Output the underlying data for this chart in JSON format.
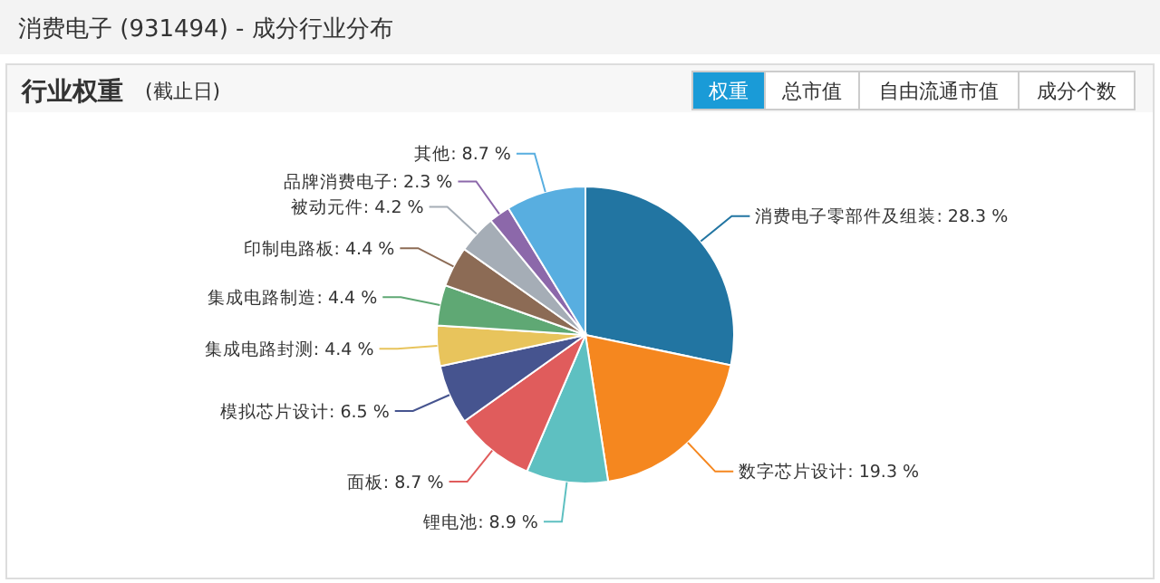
{
  "chart_data": {
    "type": "pie",
    "title": "消费电子 (931494) - 成分行业分布",
    "subtitle": "行业权重",
    "annotations": [
      "(截止日)",
      "权重",
      "总市值",
      "自由流通市值",
      "成分个数"
    ],
    "categories": [
      "消费电子零部件及组装",
      "数字芯片设计",
      "锂电池",
      "面板",
      "模拟芯片设计",
      "集成电路封测",
      "集成电路制造",
      "印制电路板",
      "被动元件",
      "品牌消费电子",
      "其他"
    ],
    "values": [
      28.3,
      19.3,
      8.9,
      8.7,
      6.5,
      4.4,
      4.4,
      4.4,
      4.2,
      2.3,
      8.7
    ],
    "value_labels": [
      "28.3 %",
      "19.3 %",
      "8.9 %",
      "8.7 %",
      "6.5 %",
      "4.4 %",
      "4.4 %",
      "4.4 %",
      "4.2 %",
      "2.3 %",
      "8.7 %"
    ],
    "colors": [
      "#2275a2",
      "#f5871f",
      "#5ec0c1",
      "#e05c5c",
      "#46548f",
      "#e8c45c",
      "#5fa874",
      "#8c6b55",
      "#a5adb6",
      "#8c68aa",
      "#58aee0"
    ]
  }
}
